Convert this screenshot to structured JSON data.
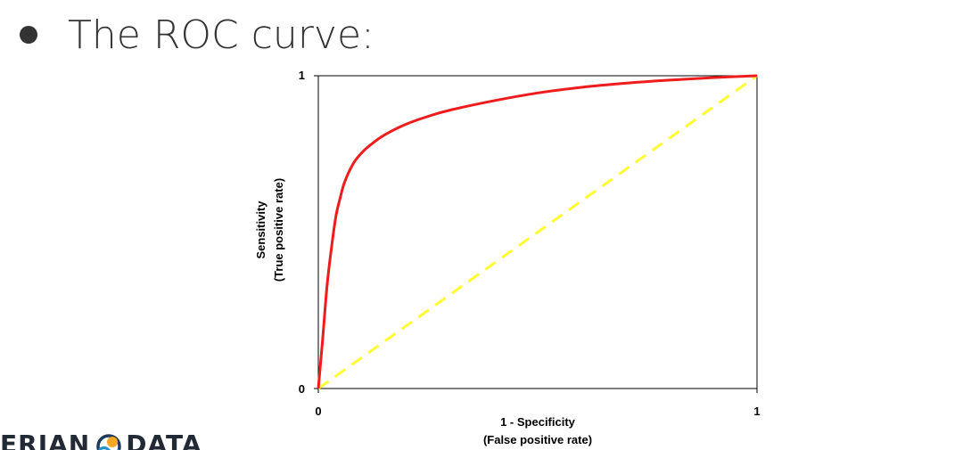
{
  "slide": {
    "title": "The ROC curve:",
    "logo_left": "ERIAN",
    "logo_right": "DATA"
  },
  "colors": {
    "roc_curve": "#ee1c1c",
    "random_line": "#ffff33",
    "axis": "#000000",
    "title_text": "#333333"
  },
  "chart_data": {
    "type": "line",
    "xlabel": "1 - Specificity",
    "xlabel_sub": "(False positive rate)",
    "ylabel": "Sensitivity",
    "ylabel_sub": "(True positive rate)",
    "xlim": [
      0,
      1
    ],
    "ylim": [
      0,
      1
    ],
    "xticks": [
      "0",
      "1"
    ],
    "yticks": [
      "0",
      "1"
    ],
    "grid": false,
    "legend": false,
    "series": [
      {
        "style": "solid",
        "color": "#ee1c1c",
        "x": [
          0,
          0.01,
          0.02,
          0.03,
          0.04,
          0.05,
          0.06,
          0.08,
          0.1,
          0.12,
          0.15,
          0.2,
          0.25,
          0.3,
          0.4,
          0.5,
          0.6,
          0.7,
          0.8,
          0.9,
          1.0
        ],
        "y": [
          0,
          0.16,
          0.33,
          0.45,
          0.55,
          0.61,
          0.66,
          0.72,
          0.755,
          0.78,
          0.81,
          0.845,
          0.87,
          0.89,
          0.92,
          0.945,
          0.963,
          0.976,
          0.986,
          0.994,
          1.0
        ]
      },
      {
        "style": "dashed",
        "color": "#ffff33",
        "x": [
          0,
          1
        ],
        "y": [
          0,
          1
        ]
      }
    ]
  }
}
